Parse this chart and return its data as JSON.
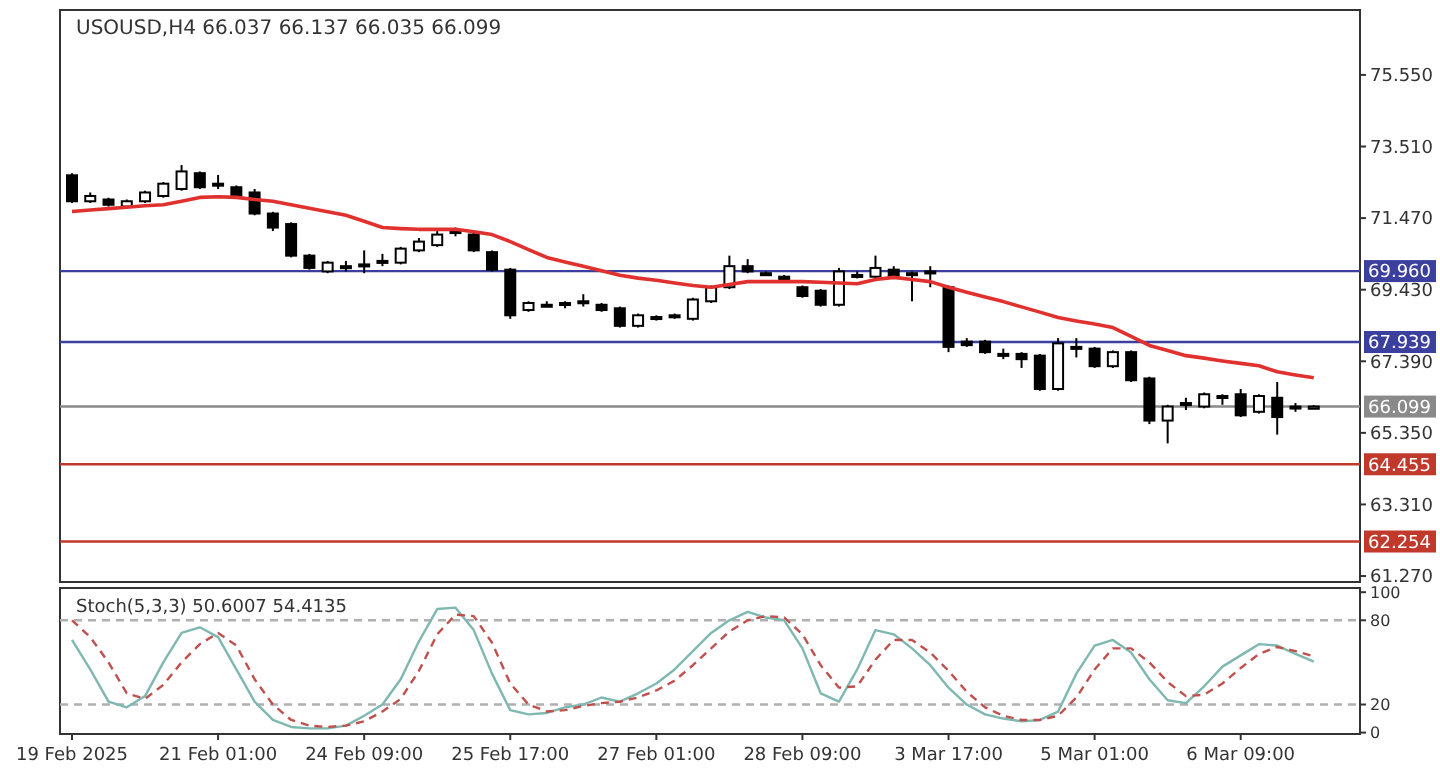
{
  "chart_data": [
    {
      "type": "candlestick",
      "title": "USOUSD,H4 66.037 66.137 66.035 66.099",
      "categories": [
        null,
        null,
        null,
        null,
        null,
        null,
        null,
        null,
        null,
        null,
        null,
        null,
        null,
        null,
        null,
        null,
        null,
        null,
        null,
        null,
        null,
        null,
        null,
        null,
        null,
        null,
        null,
        null,
        null,
        null,
        null,
        null,
        null,
        null,
        null,
        null,
        null,
        null,
        null,
        null,
        null,
        null,
        null,
        null,
        null,
        null,
        null,
        null,
        null,
        null,
        null,
        null,
        null,
        null,
        null,
        null,
        null,
        null,
        null,
        null,
        null,
        null,
        null,
        null,
        null,
        null,
        null,
        null,
        null
      ],
      "ohlc": [
        [
          72.69,
          72.75,
          71.9,
          71.95
        ],
        [
          71.95,
          72.2,
          71.9,
          72.1
        ],
        [
          72.0,
          72.05,
          71.8,
          71.85
        ],
        [
          71.8,
          72.0,
          71.75,
          71.95
        ],
        [
          71.95,
          72.25,
          71.9,
          72.2
        ],
        [
          72.1,
          72.5,
          72.05,
          72.45
        ],
        [
          72.3,
          72.98,
          72.25,
          72.8
        ],
        [
          72.75,
          72.8,
          72.3,
          72.35
        ],
        [
          72.45,
          72.7,
          72.3,
          72.4
        ],
        [
          72.35,
          72.4,
          72.05,
          72.1
        ],
        [
          72.2,
          72.3,
          71.55,
          71.6
        ],
        [
          71.6,
          71.65,
          71.1,
          71.2
        ],
        [
          71.3,
          71.35,
          70.35,
          70.4
        ],
        [
          70.4,
          70.45,
          70.0,
          70.05
        ],
        [
          69.95,
          70.25,
          69.9,
          70.2
        ],
        [
          70.1,
          70.25,
          69.95,
          70.1
        ],
        [
          70.1,
          70.55,
          69.9,
          70.15
        ],
        [
          70.2,
          70.45,
          70.1,
          70.25
        ],
        [
          70.2,
          70.65,
          70.15,
          70.6
        ],
        [
          70.55,
          70.9,
          70.5,
          70.8
        ],
        [
          70.7,
          71.1,
          70.65,
          71.0
        ],
        [
          71.05,
          71.2,
          70.95,
          71.1
        ],
        [
          71.0,
          71.05,
          70.5,
          70.55
        ],
        [
          70.5,
          70.55,
          69.95,
          70.0
        ],
        [
          70.0,
          70.05,
          68.6,
          68.7
        ],
        [
          68.85,
          69.1,
          68.8,
          69.05
        ],
        [
          69.0,
          69.1,
          68.95,
          69.0
        ],
        [
          69.05,
          69.1,
          68.9,
          69.0
        ],
        [
          69.1,
          69.3,
          68.95,
          69.05
        ],
        [
          69.0,
          69.05,
          68.8,
          68.85
        ],
        [
          68.9,
          68.95,
          68.35,
          68.4
        ],
        [
          68.4,
          68.75,
          68.35,
          68.7
        ],
        [
          68.65,
          68.7,
          68.55,
          68.6
        ],
        [
          68.7,
          68.75,
          68.6,
          68.65
        ],
        [
          68.6,
          69.2,
          68.55,
          69.15
        ],
        [
          69.1,
          69.55,
          69.05,
          69.5
        ],
        [
          69.5,
          70.4,
          69.45,
          70.1
        ],
        [
          70.1,
          70.3,
          69.9,
          69.95
        ],
        [
          69.9,
          69.95,
          69.85,
          69.9
        ],
        [
          69.8,
          69.85,
          69.65,
          69.7
        ],
        [
          69.5,
          69.55,
          69.2,
          69.25
        ],
        [
          69.4,
          69.45,
          68.95,
          69.0
        ],
        [
          69.0,
          70.05,
          68.95,
          69.95
        ],
        [
          69.85,
          69.95,
          69.75,
          69.8
        ],
        [
          69.8,
          70.4,
          69.75,
          70.05
        ],
        [
          70.0,
          70.1,
          69.75,
          69.8
        ],
        [
          69.9,
          69.95,
          69.1,
          69.85
        ],
        [
          69.95,
          70.1,
          69.5,
          69.95
        ],
        [
          69.5,
          69.55,
          67.65,
          67.8
        ],
        [
          67.95,
          68.05,
          67.8,
          67.85
        ],
        [
          67.95,
          68.0,
          67.6,
          67.65
        ],
        [
          67.6,
          67.75,
          67.45,
          67.6
        ],
        [
          67.6,
          67.65,
          67.2,
          67.45
        ],
        [
          67.55,
          67.6,
          66.55,
          66.6
        ],
        [
          66.6,
          68.05,
          66.55,
          67.9
        ],
        [
          67.75,
          68.05,
          67.5,
          67.8
        ],
        [
          67.75,
          67.8,
          67.2,
          67.25
        ],
        [
          67.25,
          67.7,
          67.2,
          67.65
        ],
        [
          67.65,
          67.7,
          66.8,
          66.85
        ],
        [
          66.9,
          66.95,
          65.6,
          65.7
        ],
        [
          65.7,
          66.15,
          65.05,
          66.1
        ],
        [
          66.15,
          66.35,
          66.0,
          66.2
        ],
        [
          66.1,
          66.5,
          66.05,
          66.45
        ],
        [
          66.4,
          66.45,
          66.15,
          66.35
        ],
        [
          66.45,
          66.6,
          65.8,
          65.85
        ],
        [
          65.95,
          66.45,
          65.9,
          66.4
        ],
        [
          66.35,
          66.8,
          65.3,
          65.8
        ],
        [
          66.05,
          66.2,
          65.95,
          66.1
        ],
        [
          66.037,
          66.137,
          66.035,
          66.099
        ]
      ],
      "series": [
        {
          "type": "line",
          "color": "#e0312f",
          "values": [
            71.66,
            71.7,
            71.74,
            71.78,
            71.82,
            71.85,
            71.95,
            72.06,
            72.08,
            72.06,
            72.0,
            71.95,
            71.85,
            71.75,
            71.65,
            71.55,
            71.38,
            71.2,
            71.17,
            71.15,
            71.15,
            71.15,
            71.08,
            71.0,
            70.8,
            70.57,
            70.35,
            70.22,
            70.1,
            69.97,
            69.84,
            69.76,
            69.7,
            69.62,
            69.55,
            69.5,
            69.58,
            69.66,
            69.66,
            69.66,
            69.66,
            69.64,
            69.62,
            69.6,
            69.72,
            69.78,
            69.72,
            69.66,
            69.5,
            69.36,
            69.22,
            69.09,
            68.94,
            68.79,
            68.64,
            68.54,
            68.45,
            68.35,
            68.1,
            67.84,
            67.7,
            67.55,
            67.48,
            67.4,
            67.33,
            67.26,
            67.09,
            67.0,
            66.92
          ]
        }
      ],
      "ylim": [
        61.1,
        77.4
      ],
      "yticks": [
        {
          "value": 75.55,
          "label": "75.550"
        },
        {
          "value": 73.51,
          "label": "73.510"
        },
        {
          "value": 71.47,
          "label": "71.470"
        },
        {
          "value": 69.43,
          "label": "69.430"
        },
        {
          "value": 67.39,
          "label": "67.390"
        },
        {
          "value": 65.35,
          "label": "65.350"
        },
        {
          "value": 63.31,
          "label": "63.310"
        },
        {
          "value": 61.27,
          "label": "61.270"
        }
      ],
      "ref_lines": [
        {
          "axis": "y",
          "value": 69.96,
          "label": "69.960",
          "color": "#3b3f9e"
        },
        {
          "axis": "y",
          "value": 67.939,
          "label": "67.939",
          "color": "#3b3f9e"
        },
        {
          "axis": "y",
          "value": 66.099,
          "label": "66.099",
          "color": "#8a8a8a"
        },
        {
          "axis": "y",
          "value": 64.455,
          "label": "64.455",
          "color": "#c0392b"
        },
        {
          "axis": "y",
          "value": 62.254,
          "label": "62.254",
          "color": "#c0392b"
        }
      ]
    },
    {
      "type": "line",
      "title": "Stoch(5,3,3) 50.6007 54.4135",
      "categories": [
        "19 Feb 2025",
        null,
        null,
        null,
        null,
        null,
        null,
        null,
        "21 Feb 01:00",
        null,
        null,
        null,
        null,
        null,
        null,
        null,
        "24 Feb 09:00",
        null,
        null,
        null,
        null,
        null,
        null,
        null,
        "25 Feb 17:00",
        null,
        null,
        null,
        null,
        null,
        null,
        null,
        "27 Feb 01:00",
        null,
        null,
        null,
        null,
        null,
        null,
        null,
        "28 Feb 09:00",
        null,
        null,
        null,
        null,
        null,
        null,
        null,
        "3 Mar 17:00",
        null,
        null,
        null,
        null,
        null,
        null,
        null,
        "5 Mar 01:00",
        null,
        null,
        null,
        null,
        null,
        null,
        null,
        "6 Mar 09:00",
        null,
        null,
        null,
        null
      ],
      "series": [
        {
          "color": "#7fb8b0",
          "line_style": "solid",
          "values": [
            66,
            45,
            22,
            18,
            26,
            50,
            71,
            75,
            68,
            45,
            22,
            9,
            4,
            3,
            3,
            5,
            12,
            20,
            38,
            65,
            88,
            89,
            73,
            42,
            16,
            13,
            14,
            18,
            20,
            25,
            22,
            28,
            35,
            45,
            58,
            71,
            80,
            86,
            82,
            80,
            60,
            28,
            22,
            45,
            73,
            70,
            60,
            48,
            32,
            20,
            13,
            10,
            8,
            9,
            15,
            42,
            62,
            66,
            57,
            38,
            23,
            21,
            33,
            47,
            55,
            63,
            62,
            56,
            50.6
          ]
        },
        {
          "color": "#c0504d",
          "line_style": "dashed",
          "values": [
            80,
            68,
            50,
            28,
            24,
            34,
            50,
            63,
            71,
            62,
            38,
            20,
            9,
            5,
            4,
            5,
            8,
            15,
            24,
            44,
            70,
            84,
            83,
            64,
            35,
            20,
            15,
            16,
            19,
            21,
            22,
            25,
            30,
            37,
            48,
            60,
            72,
            80,
            83,
            82,
            70,
            48,
            32,
            33,
            52,
            66,
            66,
            57,
            44,
            29,
            18,
            12,
            9,
            9,
            12,
            25,
            45,
            60,
            60,
            50,
            36,
            26,
            27,
            35,
            46,
            56,
            61,
            58,
            54.4
          ]
        }
      ],
      "ylim": [
        -1,
        103
      ],
      "yticks": [
        100,
        80,
        20,
        0
      ],
      "ref_lines": [
        {
          "axis": "y",
          "value": 80,
          "color": "#b0b0b0",
          "line_style": "dashed"
        },
        {
          "axis": "y",
          "value": 20,
          "color": "#b0b0b0",
          "line_style": "dashed"
        }
      ]
    }
  ]
}
